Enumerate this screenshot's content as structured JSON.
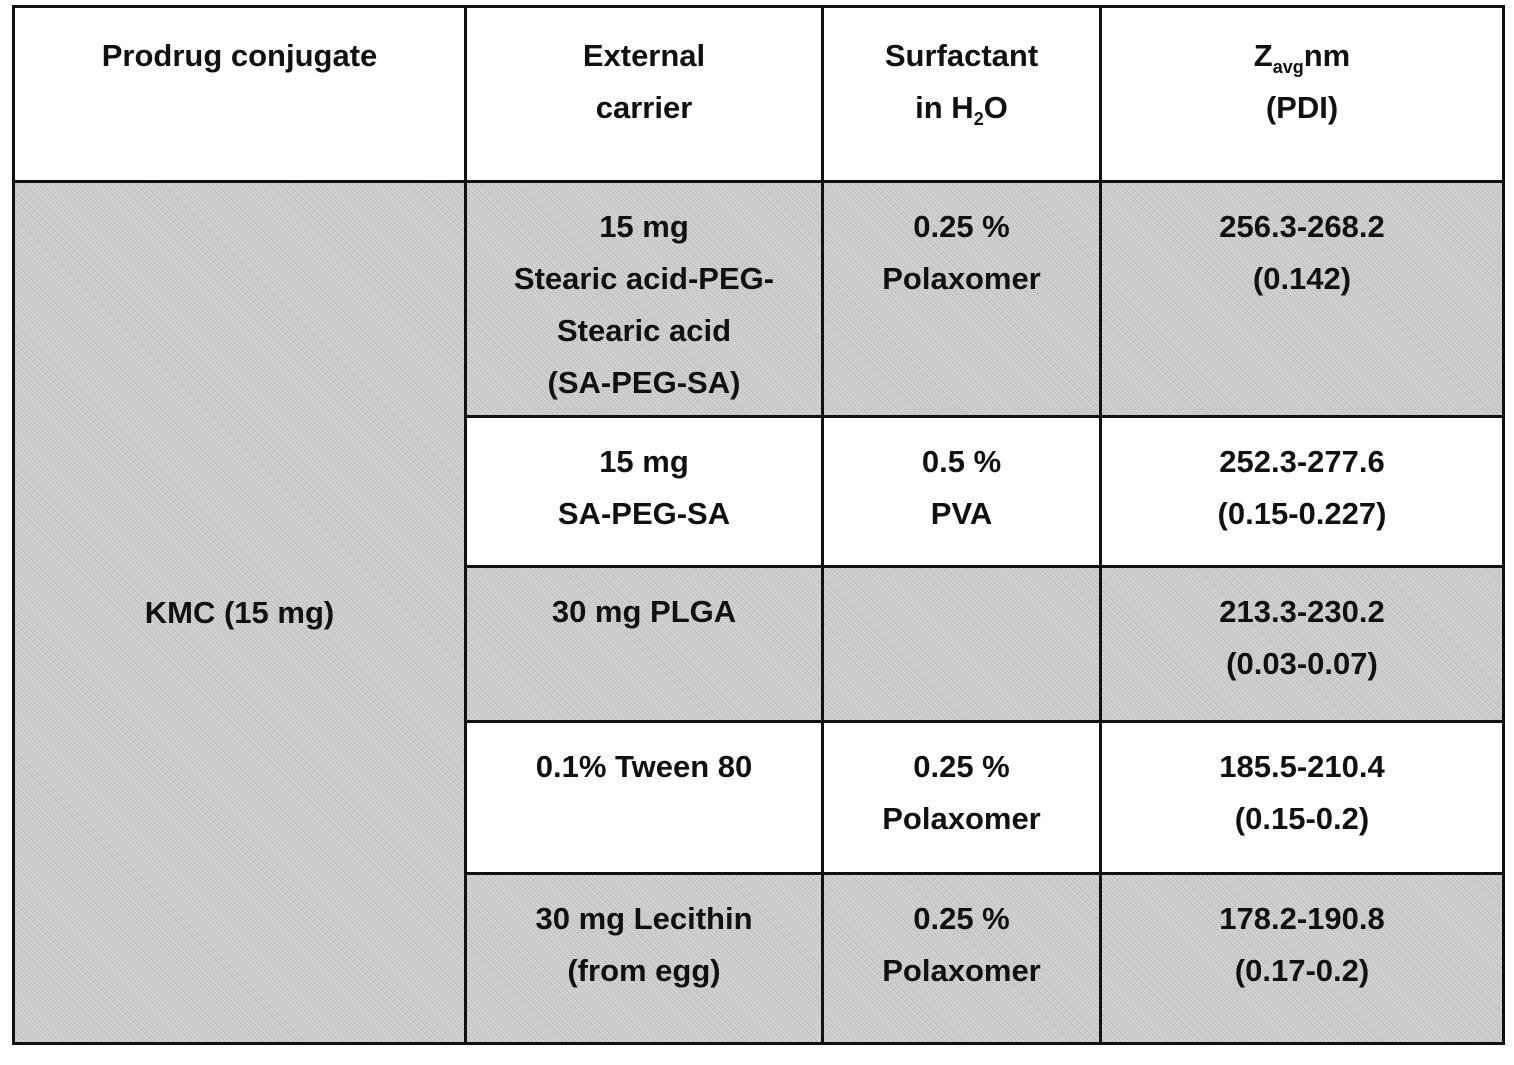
{
  "table": {
    "header": [
      [
        [
          "Prodrug conjugate"
        ]
      ],
      [
        [
          "External"
        ],
        [
          "carrier"
        ]
      ],
      [
        [
          "Surfactant"
        ],
        [
          "in H",
          "2",
          "O"
        ]
      ],
      [
        [
          "Z",
          "avg",
          "nm"
        ],
        [
          "(PDI)"
        ]
      ]
    ],
    "first_column": "KMC (15 mg)",
    "rows": [
      [
        [
          "15 mg",
          "Stearic acid-PEG-",
          "Stearic acid",
          "(SA-PEG-SA)"
        ],
        [
          "0.25 %",
          "Polaxomer"
        ],
        [
          "256.3-268.2",
          "(0.142)"
        ]
      ],
      [
        [
          "15 mg",
          "SA-PEG-SA"
        ],
        [
          "0.5 %",
          "PVA"
        ],
        [
          "252.3-277.6",
          "(0.15-0.227)"
        ]
      ],
      [
        [
          "30 mg PLGA"
        ],
        [],
        [
          "213.3-230.2",
          "(0.03-0.07)"
        ]
      ],
      [
        [
          "0.1% Tween 80"
        ],
        [
          "0.25 %",
          "Polaxomer"
        ],
        [
          "185.5-210.4",
          "(0.15-0.2)"
        ]
      ],
      [
        [
          "30 mg Lecithin",
          "(from egg)"
        ],
        [
          "0.25 %",
          "Polaxomer"
        ],
        [
          "178.2-190.8",
          "(0.17-0.2)"
        ]
      ]
    ]
  }
}
